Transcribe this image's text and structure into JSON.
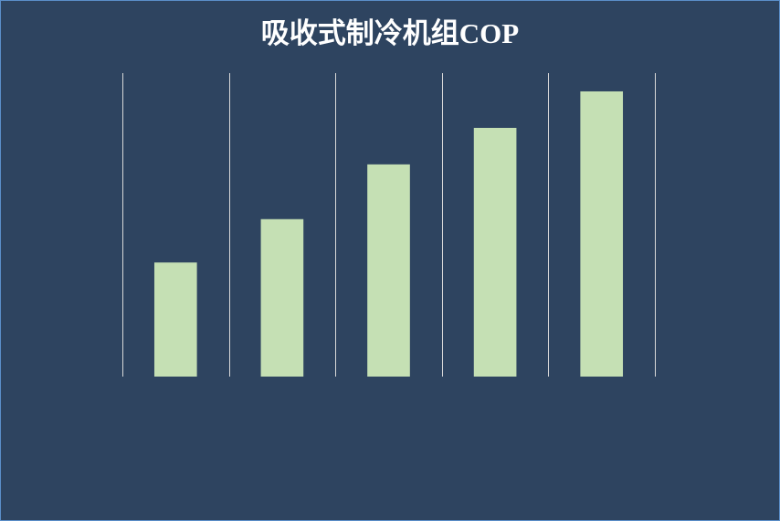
{
  "chart_data": {
    "type": "bar",
    "title": "吸收式制冷机组COP",
    "categories": [
      null,
      null,
      null,
      null,
      null
    ],
    "values": [
      0.5,
      0.69,
      0.93,
      1.09,
      1.25
    ],
    "color": "#c5e0b4",
    "ylim": [
      0,
      1.33
    ],
    "grid": true
  }
}
